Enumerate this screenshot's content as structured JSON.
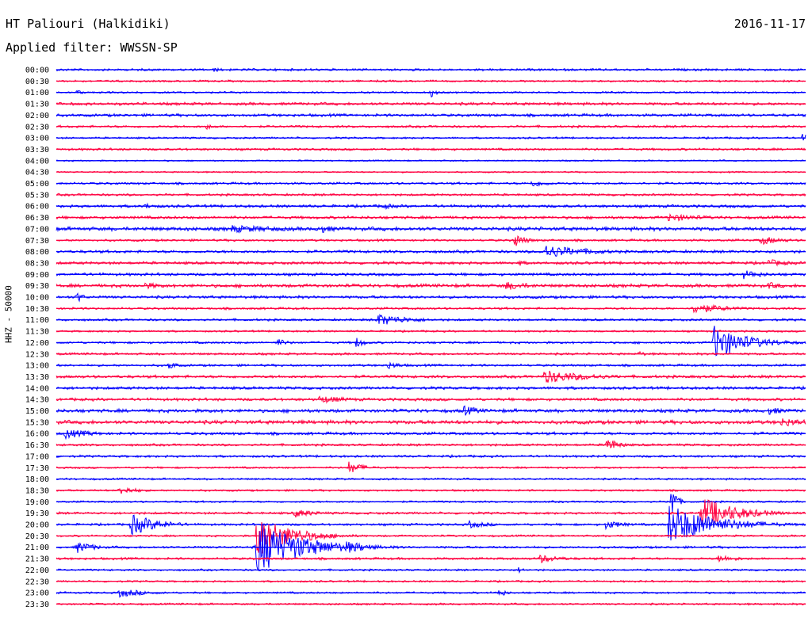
{
  "header": {
    "station": "HT Paliouri (Halkidiki)",
    "date": "2016-11-17",
    "filter": "Applied filter: WWSSN-SP"
  },
  "colors": {
    "even_row": "#0000ff",
    "odd_row": "#ff0040"
  },
  "chart_data": {
    "type": "line",
    "title": "HT Paliouri (Halkidiki)",
    "subtitle": "Applied filter: WWSSN-SP",
    "ylabel": "HHZ - 50000",
    "xlabel": "",
    "row_labels": [
      "00:00",
      "00:30",
      "01:00",
      "01:30",
      "02:00",
      "02:30",
      "03:00",
      "03:30",
      "04:00",
      "04:30",
      "05:00",
      "05:30",
      "06:00",
      "06:30",
      "07:00",
      "07:30",
      "08:00",
      "08:30",
      "09:00",
      "09:30",
      "10:00",
      "10:30",
      "11:00",
      "11:30",
      "12:00",
      "12:30",
      "13:00",
      "13:30",
      "14:00",
      "14:30",
      "15:00",
      "15:30",
      "16:00",
      "16:30",
      "17:00",
      "17:30",
      "18:00",
      "18:30",
      "19:00",
      "19:30",
      "20:00",
      "20:30",
      "21:00",
      "21:30",
      "22:00",
      "22:30",
      "23:00",
      "23:30"
    ],
    "row_minutes": 30,
    "noise_levels": [
      1.2,
      1.0,
      1.0,
      1.5,
      1.5,
      1.2,
      1.0,
      1.2,
      0.8,
      0.8,
      1.2,
      1.2,
      1.5,
      1.5,
      2.0,
      1.2,
      1.5,
      1.5,
      1.5,
      1.8,
      1.5,
      1.2,
      1.2,
      1.0,
      1.2,
      1.2,
      1.2,
      1.5,
      1.5,
      1.5,
      1.8,
      2.0,
      1.5,
      1.2,
      1.2,
      1.0,
      1.0,
      1.0,
      1.0,
      1.2,
      1.2,
      1.0,
      1.2,
      1.2,
      1.0,
      1.0,
      1.0,
      1.0
    ],
    "events": [
      {
        "row": 0,
        "minute": 6.3,
        "amplitude": 3,
        "duration_min": 0.5
      },
      {
        "row": 2,
        "minute": 0.8,
        "amplitude": 4,
        "duration_min": 0.3
      },
      {
        "row": 2,
        "minute": 15,
        "amplitude": 6,
        "duration_min": 0.3
      },
      {
        "row": 5,
        "minute": 6,
        "amplitude": 4,
        "duration_min": 0.4
      },
      {
        "row": 6,
        "minute": 29.8,
        "amplitude": 7,
        "duration_min": 0.4
      },
      {
        "row": 10,
        "minute": 19,
        "amplitude": 5,
        "duration_min": 0.8
      },
      {
        "row": 12,
        "minute": 3.5,
        "amplitude": 4,
        "duration_min": 0.7
      },
      {
        "row": 12,
        "minute": 13,
        "amplitude": 4,
        "duration_min": 1.0
      },
      {
        "row": 13,
        "minute": 24.5,
        "amplitude": 5,
        "duration_min": 2.0
      },
      {
        "row": 14,
        "minute": 7,
        "amplitude": 5,
        "duration_min": 3.0
      },
      {
        "row": 14,
        "minute": 10.5,
        "amplitude": 6,
        "duration_min": 0.8
      },
      {
        "row": 15,
        "minute": 18.3,
        "amplitude": 10,
        "duration_min": 0.5
      },
      {
        "row": 15,
        "minute": 28.2,
        "amplitude": 6,
        "duration_min": 1.0
      },
      {
        "row": 16,
        "minute": 19.5,
        "amplitude": 9,
        "duration_min": 2.0
      },
      {
        "row": 17,
        "minute": 18.5,
        "amplitude": 4,
        "duration_min": 0.5
      },
      {
        "row": 17,
        "minute": 28.5,
        "amplitude": 5,
        "duration_min": 1.0
      },
      {
        "row": 18,
        "minute": 27.5,
        "amplitude": 6,
        "duration_min": 1.0
      },
      {
        "row": 19,
        "minute": 3.5,
        "amplitude": 5,
        "duration_min": 0.8
      },
      {
        "row": 19,
        "minute": 18,
        "amplitude": 6,
        "duration_min": 1.2
      },
      {
        "row": 19,
        "minute": 28.5,
        "amplitude": 5,
        "duration_min": 0.8
      },
      {
        "row": 20,
        "minute": 0.8,
        "amplitude": 8,
        "duration_min": 0.3
      },
      {
        "row": 21,
        "minute": 25.5,
        "amplitude": 7,
        "duration_min": 1.5
      },
      {
        "row": 22,
        "minute": 12.8,
        "amplitude": 8,
        "duration_min": 1.5
      },
      {
        "row": 24,
        "minute": 26.3,
        "amplitude": 22,
        "duration_min": 1.5
      },
      {
        "row": 24,
        "minute": 8.8,
        "amplitude": 6,
        "duration_min": 0.5
      },
      {
        "row": 24,
        "minute": 12,
        "amplitude": 7,
        "duration_min": 0.4
      },
      {
        "row": 25,
        "minute": 23.3,
        "amplitude": 4,
        "duration_min": 0.4
      },
      {
        "row": 26,
        "minute": 4.5,
        "amplitude": 7,
        "duration_min": 0.3
      },
      {
        "row": 26,
        "minute": 13.2,
        "amplitude": 5,
        "duration_min": 0.8
      },
      {
        "row": 27,
        "minute": 19.5,
        "amplitude": 9,
        "duration_min": 2.0
      },
      {
        "row": 29,
        "minute": 10.5,
        "amplitude": 5,
        "duration_min": 1.5
      },
      {
        "row": 30,
        "minute": 16.3,
        "amplitude": 7,
        "duration_min": 0.8
      },
      {
        "row": 30,
        "minute": 28.5,
        "amplitude": 5,
        "duration_min": 1.0
      },
      {
        "row": 31,
        "minute": 29,
        "amplitude": 6,
        "duration_min": 1.5
      },
      {
        "row": 32,
        "minute": 0.3,
        "amplitude": 7,
        "duration_min": 1.2
      },
      {
        "row": 33,
        "minute": 22,
        "amplitude": 11,
        "duration_min": 0.5
      },
      {
        "row": 35,
        "minute": 11.7,
        "amplitude": 8,
        "duration_min": 0.7
      },
      {
        "row": 37,
        "minute": 2.5,
        "amplitude": 6,
        "duration_min": 0.8
      },
      {
        "row": 38,
        "minute": 24.6,
        "amplitude": 30,
        "duration_min": 0.2
      },
      {
        "row": 39,
        "minute": 9.5,
        "amplitude": 6,
        "duration_min": 1.0
      },
      {
        "row": 39,
        "minute": 25.8,
        "amplitude": 22,
        "duration_min": 1.5
      },
      {
        "row": 40,
        "minute": 3,
        "amplitude": 14,
        "duration_min": 1.2
      },
      {
        "row": 40,
        "minute": 24.5,
        "amplitude": 26,
        "duration_min": 2.0
      },
      {
        "row": 40,
        "minute": 16.5,
        "amplitude": 5,
        "duration_min": 1.0
      },
      {
        "row": 40,
        "minute": 22,
        "amplitude": 6,
        "duration_min": 0.8
      },
      {
        "row": 41,
        "minute": 8,
        "amplitude": 28,
        "duration_min": 1.5
      },
      {
        "row": 42,
        "minute": 8,
        "amplitude": 35,
        "duration_min": 2.0
      },
      {
        "row": 42,
        "minute": 0.8,
        "amplitude": 8,
        "duration_min": 0.8
      },
      {
        "row": 42,
        "minute": 11.5,
        "amplitude": 9,
        "duration_min": 1.2
      },
      {
        "row": 43,
        "minute": 19.3,
        "amplitude": 6,
        "duration_min": 1.0
      },
      {
        "row": 43,
        "minute": 26.5,
        "amplitude": 5,
        "duration_min": 1.0
      },
      {
        "row": 44,
        "minute": 18.5,
        "amplitude": 4,
        "duration_min": 0.3
      },
      {
        "row": 46,
        "minute": 2.5,
        "amplitude": 6,
        "duration_min": 1.2
      },
      {
        "row": 46,
        "minute": 17.7,
        "amplitude": 7,
        "duration_min": 0.3
      }
    ]
  }
}
